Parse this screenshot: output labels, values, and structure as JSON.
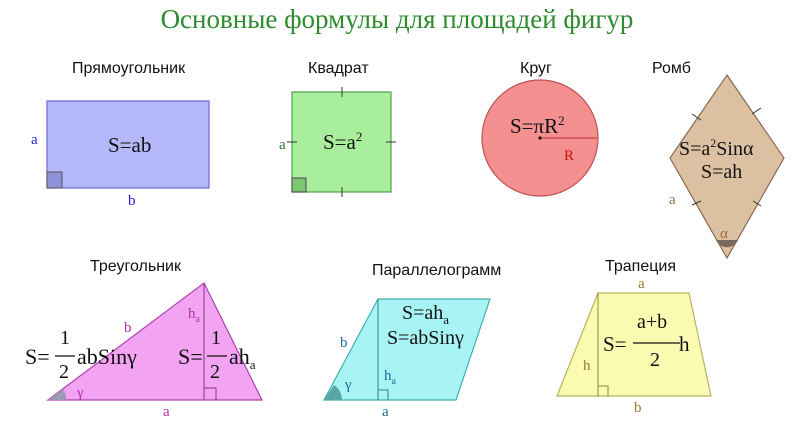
{
  "page": {
    "title": "Основные формулы для площадей фигур"
  },
  "rectangle": {
    "name": "Прямоугольник",
    "formula": "S=ab",
    "side_a": "a",
    "side_b": "b"
  },
  "square": {
    "name": "Квадрат",
    "formula_base": "S=a",
    "formula_exp": "2",
    "side_a": "a"
  },
  "circle": {
    "name": "Круг",
    "formula_base": "S=πR",
    "formula_exp": "2",
    "radius": "R"
  },
  "rhombus": {
    "name": "Ромб",
    "formula1_base": "S=a",
    "formula1_exp": "2",
    "formula1_tail": "Sinα",
    "formula2": "S=ah",
    "side_a": "a",
    "angle": "α"
  },
  "triangle": {
    "name": "Треугольник",
    "f1_prefix": "S=",
    "f1_num": "1",
    "f1_den": "2",
    "f1_tail": "abSinγ",
    "f2_prefix": "S=",
    "f2_num": "1",
    "f2_den": "2",
    "f2_tail": "ah",
    "f2_sub": "a",
    "side_a": "a",
    "side_b": "b",
    "height": "h",
    "height_sub": "a",
    "angle": "γ"
  },
  "parallelogram": {
    "name": "Параллелограмм",
    "f1": "S=ah",
    "f1_sub": "a",
    "f2": "S=abSinγ",
    "side_a": "a",
    "side_b": "b",
    "height": "h",
    "height_sub": "a",
    "angle": "γ"
  },
  "trapezoid": {
    "name": "Трапеция",
    "prefix": "S=",
    "num": "a+b",
    "den": "2",
    "tail": "h",
    "side_a": "a",
    "side_b": "b",
    "height": "h"
  },
  "colors": {
    "title": "#2e8b2e",
    "rect_fill": "#b4b8f8",
    "square_fill": "#a8ee9c",
    "circle_fill": "#f49090",
    "rhombus_fill": "#dcc0a2",
    "triangle_fill": "#f2a4f2",
    "para_fill": "#a8f4f4",
    "trap_fill": "#fafab0"
  }
}
